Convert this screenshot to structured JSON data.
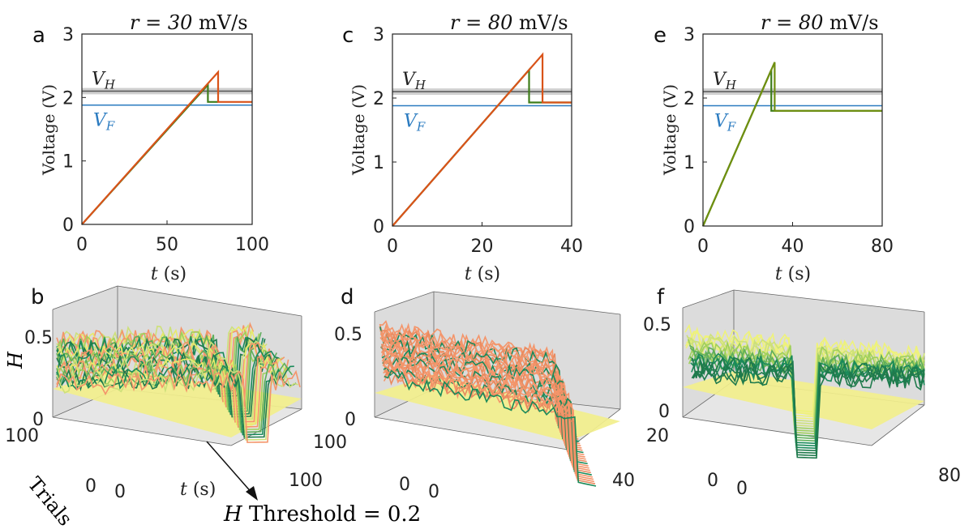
{
  "colors": {
    "orange": "#d95319",
    "dark_green": "#3e7d1a",
    "olive": "#6f8f10",
    "blue": "#2b7bc0",
    "gray_band": "#cfcfcf",
    "plane_yellow": "#f2ef8c",
    "box_gray": "#dcdcdc",
    "salmon": "#f4956a",
    "teal": "#1a8a5a",
    "lime": "#cde07a"
  },
  "chart_data": [
    {
      "panel": "a",
      "type": "line",
      "title": "r = 30 mV/s",
      "title_rate": "30",
      "title_unit": "mV/s",
      "xlabel": "t (s)",
      "ylabel": "Voltage (V)",
      "xlim": [
        0,
        100
      ],
      "ylim": [
        0,
        3
      ],
      "xticks": [
        "0",
        "50",
        "100"
      ],
      "xtick_values": [
        0,
        50,
        100
      ],
      "yticks": [
        "0",
        "1",
        "2",
        "3"
      ],
      "ytick_values": [
        0,
        1,
        2,
        3
      ],
      "VH": 2.1,
      "VF": 1.88,
      "VH_label": "V",
      "VH_sub": "H",
      "VF_label": "V",
      "VF_sub": "F",
      "series": [
        {
          "name": "orange",
          "x": [
            0,
            80,
            80,
            100
          ],
          "y": [
            0,
            2.4,
            1.93,
            1.93
          ]
        },
        {
          "name": "green",
          "x": [
            0,
            74,
            74,
            80
          ],
          "y": [
            0,
            2.2,
            1.93,
            1.93
          ]
        }
      ]
    },
    {
      "panel": "c",
      "type": "line",
      "title": "r = 80 mV/s",
      "title_rate": "80",
      "title_unit": "mV/s",
      "xlabel": "t (s)",
      "ylabel": "Voltage (V)",
      "xlim": [
        0,
        40
      ],
      "ylim": [
        0,
        3
      ],
      "xticks": [
        "0",
        "20",
        "40"
      ],
      "xtick_values": [
        0,
        20,
        40
      ],
      "yticks": [
        "0",
        "1",
        "2",
        "3"
      ],
      "ytick_values": [
        0,
        1,
        2,
        3
      ],
      "VH": 2.1,
      "VF": 1.88,
      "VH_label": "V",
      "VH_sub": "H",
      "VF_label": "V",
      "VF_sub": "F",
      "series": [
        {
          "name": "orange",
          "x": [
            0,
            33.5,
            33.5,
            40
          ],
          "y": [
            0,
            2.68,
            1.93,
            1.93
          ]
        },
        {
          "name": "green",
          "x": [
            0,
            30.5,
            30.5,
            40
          ],
          "y": [
            0,
            2.44,
            1.93,
            1.93
          ]
        }
      ]
    },
    {
      "panel": "e",
      "type": "line",
      "title": "r = 80 mV/s",
      "title_rate": "80",
      "title_unit": "mV/s",
      "xlabel": "t (s)",
      "ylabel": "Voltage (V)",
      "xlim": [
        0,
        80
      ],
      "ylim": [
        0,
        3
      ],
      "xticks": [
        "0",
        "40",
        "80"
      ],
      "xtick_values": [
        0,
        40,
        80
      ],
      "yticks": [
        "0",
        "1",
        "2",
        "3"
      ],
      "ytick_values": [
        0,
        1,
        2,
        3
      ],
      "VH": 2.1,
      "VF": 1.88,
      "VH_label": "V",
      "VH_sub": "H",
      "VF_label": "V",
      "VF_sub": "F",
      "series": [
        {
          "name": "olive",
          "x": [
            0,
            32,
            32,
            80
          ],
          "y": [
            0,
            2.56,
            1.8,
            1.8
          ]
        },
        {
          "name": "green",
          "x": [
            0,
            30.5,
            30.5,
            80
          ],
          "y": [
            0,
            2.44,
            1.8,
            1.8
          ]
        }
      ]
    },
    {
      "panel": "b",
      "type": "3d-line",
      "zlabel": "H",
      "ylabel": "Trials",
      "xlabel": "t (s)",
      "zticks": [
        "0",
        "0.5"
      ],
      "yticks": [
        "0",
        "100"
      ],
      "xticks": [
        "0",
        "100"
      ],
      "threshold": 0.2
    },
    {
      "panel": "d",
      "type": "3d-line",
      "zticks": [
        "0",
        "0.5"
      ],
      "yticks": [
        "0",
        "100"
      ],
      "xticks": [
        "0",
        "40"
      ],
      "threshold": 0.2
    },
    {
      "panel": "f",
      "type": "3d-line",
      "zticks": [
        "0",
        "0.5"
      ],
      "yticks": [
        "0",
        "20"
      ],
      "xticks": [
        "0",
        "80"
      ],
      "threshold": 0.2
    }
  ],
  "annotation": {
    "symbol": "H",
    "text": "Threshold = 0.2"
  }
}
